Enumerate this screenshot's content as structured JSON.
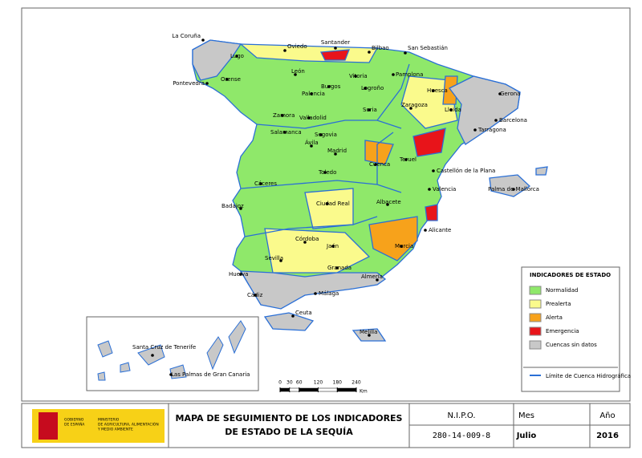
{
  "map": {
    "cities": [
      "La Coruña",
      "Oviedo",
      "Santander",
      "Bilbao",
      "San Sebastián",
      "Lugo",
      "León",
      "Vitoria",
      "Pamplona",
      "Orense",
      "Pontevedra",
      "Burgos",
      "Logroño",
      "Huesca",
      "Palencia",
      "Gerona",
      "Zaragoza",
      "Soria",
      "Lleida",
      "Zamora",
      "Valladolid",
      "Barcelona",
      "Tarragona",
      "Salamanca",
      "Segovia",
      "Ávila",
      "Madrid",
      "Teruel",
      "Cuenca",
      "Castellón de la Plana",
      "Toledo",
      "Palma de Mallorca",
      "Cáceres",
      "Valencia",
      "Badajoz",
      "Ciudad Real",
      "Albacete",
      "Alicante",
      "Córdoba",
      "Jaén",
      "Murcia",
      "Sevilla",
      "Granada",
      "Huelva",
      "Almería",
      "Cádiz",
      "Málaga",
      "Ceuta",
      "Melilla",
      "Santa Cruz de Tenerife",
      "Las Palmas de Gran Canaria"
    ]
  },
  "legend": {
    "title": "INDICADORES DE ESTADO",
    "items": [
      {
        "label": "Normalidad",
        "color": "#8fe86a"
      },
      {
        "label": "Prealerta",
        "color": "#fafa8c"
      },
      {
        "label": "Alerta",
        "color": "#f7a21b"
      },
      {
        "label": "Emergencia",
        "color": "#e8141a"
      },
      {
        "label": "Cuencas sin datos",
        "color": "#c8c8c8"
      }
    ],
    "boundary": "Límite de Cuenca Hidrográfica",
    "boundary_color": "#2a6fd6"
  },
  "scale_bar": {
    "ticks": [
      0,
      30,
      60,
      120,
      180,
      240
    ],
    "unit": "Km"
  },
  "footer": {
    "gobierno": [
      "GOBIERNO",
      "DE ESPAÑA"
    ],
    "ministerio": [
      "MINISTERIO",
      "DE AGRICULTURA, ALIMENTACIÓN",
      "Y MEDIO AMBIENTE"
    ],
    "title_lines": [
      "MAPA DE SEGUIMIENTO DE LOS INDICADORES",
      "DE ESTADO DE LA SEQUÍA"
    ],
    "nipo_label": "N.I.P.O.",
    "nipo": "280-14-009-8",
    "mes_label": "Mes",
    "mes": "Julio",
    "anio_label": "Año",
    "anio": "2016"
  }
}
